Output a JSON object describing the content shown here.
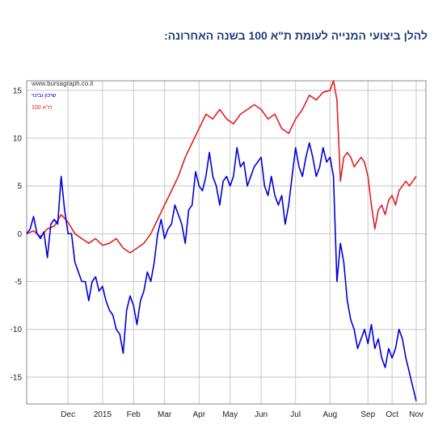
{
  "headline": "להלן ביצועי המנייה לעומת ת\"א 100 בשנה האחרונה:",
  "chart_data": {
    "type": "line",
    "watermark": "www.bursagraph.co.il",
    "xlabel": "",
    "ylabel": "",
    "ylim": [
      -17.8,
      16
    ],
    "xlim": [
      0,
      113
    ],
    "grid": true,
    "legend_position": "top-left",
    "y_ticks": [
      15,
      10,
      5,
      0,
      -5,
      -10,
      -15
    ],
    "x_ticks": [
      {
        "label": "Dec",
        "x": 12
      },
      {
        "label": "2015",
        "x": 22
      },
      {
        "label": "Feb",
        "x": 31
      },
      {
        "label": "Mar",
        "x": 40
      },
      {
        "label": "Apr",
        "x": 50
      },
      {
        "label": "May",
        "x": 59
      },
      {
        "label": "Jun",
        "x": 68
      },
      {
        "label": "Jul",
        "x": 78
      },
      {
        "label": "Aug",
        "x": 88
      },
      {
        "label": "Sep",
        "x": 99
      },
      {
        "label": "Oct",
        "x": 106
      },
      {
        "label": "Nov",
        "x": 113
      }
    ],
    "series": [
      {
        "name": "שיכון ובינוי",
        "color": "#0000dd",
        "points": [
          [
            0,
            0
          ],
          [
            1,
            0.5
          ],
          [
            2,
            1.8
          ],
          [
            3,
            0
          ],
          [
            4,
            -0.5
          ],
          [
            5,
            0.2
          ],
          [
            6,
            -2.5
          ],
          [
            7,
            1
          ],
          [
            8,
            1.5
          ],
          [
            9,
            1
          ],
          [
            10,
            6
          ],
          [
            11,
            2.5
          ],
          [
            12,
            0
          ],
          [
            13,
            0
          ],
          [
            14,
            -3
          ],
          [
            15,
            -4
          ],
          [
            16,
            -5
          ],
          [
            17,
            -5
          ],
          [
            18,
            -7
          ],
          [
            19,
            -5
          ],
          [
            20,
            -4.5
          ],
          [
            21,
            -6
          ],
          [
            22,
            -5.5
          ],
          [
            23,
            -7
          ],
          [
            24,
            -8
          ],
          [
            25,
            -8.5
          ],
          [
            26,
            -10
          ],
          [
            27,
            -10.5
          ],
          [
            28,
            -12.5
          ],
          [
            29,
            -8
          ],
          [
            30,
            -6.5
          ],
          [
            31,
            -7.5
          ],
          [
            32,
            -9.5
          ],
          [
            33,
            -7
          ],
          [
            34,
            -6
          ],
          [
            35,
            -4
          ],
          [
            36,
            -5
          ],
          [
            37,
            -3
          ],
          [
            38,
            0
          ],
          [
            39,
            1.5
          ],
          [
            40,
            -0.5
          ],
          [
            41,
            0.5
          ],
          [
            42,
            1
          ],
          [
            43,
            3
          ],
          [
            44,
            2
          ],
          [
            45,
            1
          ],
          [
            46,
            -1
          ],
          [
            47,
            2.5
          ],
          [
            48,
            3
          ],
          [
            49,
            6.5
          ],
          [
            50,
            5
          ],
          [
            51,
            4.5
          ],
          [
            52,
            6
          ],
          [
            53,
            8.5
          ],
          [
            54,
            6
          ],
          [
            55,
            5
          ],
          [
            56,
            3
          ],
          [
            57,
            5.5
          ],
          [
            58,
            6
          ],
          [
            59,
            5
          ],
          [
            60,
            6
          ],
          [
            61,
            9
          ],
          [
            62,
            7
          ],
          [
            63,
            7.5
          ],
          [
            64,
            5
          ],
          [
            65,
            6
          ],
          [
            66,
            7
          ],
          [
            67,
            7.5
          ],
          [
            68,
            8
          ],
          [
            69,
            5
          ],
          [
            70,
            4
          ],
          [
            71,
            6
          ],
          [
            72,
            4
          ],
          [
            73,
            3
          ],
          [
            74,
            4
          ],
          [
            75,
            1
          ],
          [
            76,
            3
          ],
          [
            77,
            6
          ],
          [
            78,
            9
          ],
          [
            79,
            7
          ],
          [
            80,
            6
          ],
          [
            81,
            8
          ],
          [
            82,
            9.5
          ],
          [
            83,
            8
          ],
          [
            84,
            6
          ],
          [
            85,
            7
          ],
          [
            86,
            9
          ],
          [
            87,
            7.5
          ],
          [
            88,
            8
          ],
          [
            89,
            6
          ],
          [
            90,
            -5
          ],
          [
            91,
            -1
          ],
          [
            92,
            -3
          ],
          [
            93,
            -7
          ],
          [
            94,
            -9
          ],
          [
            95,
            -10
          ],
          [
            96,
            -12
          ],
          [
            97,
            -11
          ],
          [
            98,
            -10
          ],
          [
            99,
            -11.5
          ],
          [
            100,
            -9.5
          ],
          [
            101,
            -12
          ],
          [
            102,
            -11
          ],
          [
            103,
            -13
          ],
          [
            104,
            -14
          ],
          [
            105,
            -12
          ],
          [
            106,
            -13
          ],
          [
            107,
            -12
          ],
          [
            108,
            -10
          ],
          [
            109,
            -11
          ],
          [
            110,
            -13
          ],
          [
            111,
            -14.5
          ],
          [
            112,
            -16
          ],
          [
            113,
            -17.5
          ]
        ]
      },
      {
        "name": "ת\"א 100",
        "color": "#e02020",
        "points": [
          [
            0,
            0
          ],
          [
            2,
            0.3
          ],
          [
            4,
            -0.3
          ],
          [
            6,
            0.5
          ],
          [
            8,
            0.8
          ],
          [
            10,
            2
          ],
          [
            12,
            1.2
          ],
          [
            14,
            0
          ],
          [
            16,
            -0.5
          ],
          [
            18,
            -1
          ],
          [
            20,
            -0.5
          ],
          [
            22,
            -1.2
          ],
          [
            24,
            -1
          ],
          [
            26,
            -0.5
          ],
          [
            28,
            -1.5
          ],
          [
            30,
            -2
          ],
          [
            32,
            -1.5
          ],
          [
            34,
            -1
          ],
          [
            36,
            0
          ],
          [
            38,
            1.5
          ],
          [
            40,
            3
          ],
          [
            42,
            4.5
          ],
          [
            44,
            6
          ],
          [
            46,
            8
          ],
          [
            48,
            9.5
          ],
          [
            50,
            11
          ],
          [
            52,
            12.5
          ],
          [
            54,
            12
          ],
          [
            56,
            13
          ],
          [
            58,
            12
          ],
          [
            60,
            11.5
          ],
          [
            62,
            12.5
          ],
          [
            64,
            13
          ],
          [
            66,
            13.5
          ],
          [
            68,
            13
          ],
          [
            70,
            12
          ],
          [
            72,
            12.5
          ],
          [
            74,
            11
          ],
          [
            76,
            10.5
          ],
          [
            78,
            12
          ],
          [
            80,
            13
          ],
          [
            82,
            14.5
          ],
          [
            84,
            14
          ],
          [
            86,
            14.8
          ],
          [
            88,
            15
          ],
          [
            89,
            16
          ],
          [
            90,
            14
          ],
          [
            91,
            5.5
          ],
          [
            92,
            8
          ],
          [
            93,
            8.5
          ],
          [
            94,
            8
          ],
          [
            95,
            7
          ],
          [
            96,
            7.5
          ],
          [
            97,
            8
          ],
          [
            98,
            7.5
          ],
          [
            99,
            6
          ],
          [
            100,
            3
          ],
          [
            101,
            0.5
          ],
          [
            102,
            2.5
          ],
          [
            103,
            3
          ],
          [
            104,
            2
          ],
          [
            105,
            3.5
          ],
          [
            106,
            4
          ],
          [
            107,
            3
          ],
          [
            108,
            4.5
          ],
          [
            109,
            5
          ],
          [
            110,
            5.5
          ],
          [
            111,
            5
          ],
          [
            112,
            5.5
          ],
          [
            113,
            6
          ]
        ]
      }
    ]
  }
}
